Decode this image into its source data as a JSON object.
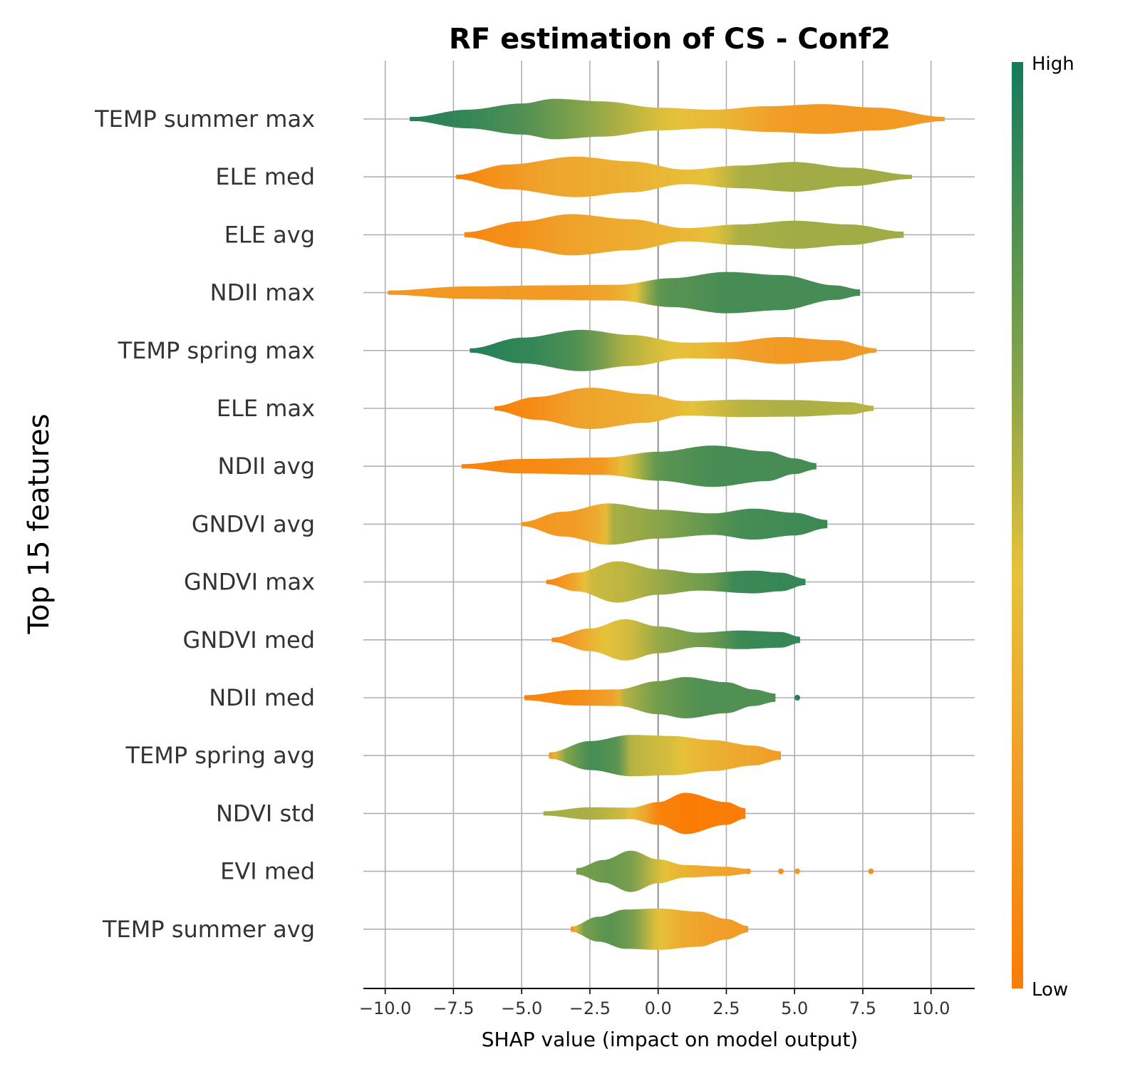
{
  "chart_data": {
    "type": "violin",
    "title": "RF estimation of CS - Conf2",
    "xlabel": "SHAP value (impact on model output)",
    "ylabel": "Top 15 features",
    "xlim": [
      -10.8,
      11.6
    ],
    "xticks": [
      -10.0,
      -7.5,
      -5.0,
      -2.5,
      0.0,
      2.5,
      5.0,
      7.5,
      10.0
    ],
    "xtick_labels": [
      "−10.0",
      "−7.5",
      "−5.0",
      "−2.5",
      "0.0",
      "2.5",
      "5.0",
      "7.5",
      "10.0"
    ],
    "grid": true,
    "colorbar": {
      "high_label": "High",
      "low_label": "Low",
      "high_color": "#137a5b",
      "mid_high_color": "#8aa54a",
      "mid_color": "#e6c23a",
      "mid_low_color": "#f0a02a",
      "low_color": "#fa7c05"
    },
    "features": [
      {
        "name": "TEMP summer max",
        "min": -9.1,
        "max": 10.5,
        "density": [
          [
            -9.1,
            0.08
          ],
          [
            -7.0,
            0.45
          ],
          [
            -5.0,
            0.75
          ],
          [
            -3.8,
            0.98
          ],
          [
            -2.0,
            0.85
          ],
          [
            0.0,
            0.55
          ],
          [
            2.0,
            0.45
          ],
          [
            4.0,
            0.62
          ],
          [
            6.0,
            0.72
          ],
          [
            8.0,
            0.55
          ],
          [
            10.5,
            0.1
          ]
        ],
        "color_values": [
          [
            -9.1,
            0.95
          ],
          [
            -7.0,
            0.9
          ],
          [
            -5.0,
            0.82
          ],
          [
            -3.0,
            0.68
          ],
          [
            -1.5,
            0.58
          ],
          [
            0.5,
            0.45
          ],
          [
            2.5,
            0.38
          ],
          [
            4.5,
            0.22
          ],
          [
            7.0,
            0.2
          ],
          [
            10.5,
            0.22
          ]
        ]
      },
      {
        "name": "ELE med",
        "min": -7.4,
        "max": 9.3,
        "density": [
          [
            -7.4,
            0.1
          ],
          [
            -5.5,
            0.6
          ],
          [
            -3.0,
            0.98
          ],
          [
            -1.0,
            0.75
          ],
          [
            1.0,
            0.35
          ],
          [
            3.0,
            0.55
          ],
          [
            5.0,
            0.72
          ],
          [
            7.0,
            0.45
          ],
          [
            9.3,
            0.1
          ]
        ],
        "color_values": [
          [
            -7.4,
            0.02
          ],
          [
            -6.0,
            0.15
          ],
          [
            -4.0,
            0.28
          ],
          [
            -2.0,
            0.32
          ],
          [
            0.0,
            0.38
          ],
          [
            1.8,
            0.45
          ],
          [
            3.0,
            0.58
          ],
          [
            5.0,
            0.6
          ],
          [
            7.0,
            0.6
          ],
          [
            9.3,
            0.6
          ]
        ]
      },
      {
        "name": "ELE avg",
        "min": -7.1,
        "max": 9.0,
        "density": [
          [
            -7.1,
            0.12
          ],
          [
            -5.0,
            0.65
          ],
          [
            -3.2,
            1.0
          ],
          [
            -1.0,
            0.75
          ],
          [
            1.0,
            0.32
          ],
          [
            3.0,
            0.5
          ],
          [
            5.0,
            0.68
          ],
          [
            7.0,
            0.5
          ],
          [
            9.0,
            0.15
          ]
        ],
        "color_values": [
          [
            -7.1,
            0.08
          ],
          [
            -5.0,
            0.15
          ],
          [
            -3.5,
            0.25
          ],
          [
            -1.0,
            0.32
          ],
          [
            1.0,
            0.38
          ],
          [
            2.0,
            0.45
          ],
          [
            3.0,
            0.58
          ],
          [
            5.0,
            0.6
          ],
          [
            9.0,
            0.6
          ]
        ]
      },
      {
        "name": "NDII max",
        "min": -9.9,
        "max": 7.4,
        "density": [
          [
            -9.9,
            0.1
          ],
          [
            -7.0,
            0.3
          ],
          [
            -4.0,
            0.35
          ],
          [
            -1.5,
            0.38
          ],
          [
            0.5,
            0.7
          ],
          [
            2.5,
            1.0
          ],
          [
            4.5,
            0.85
          ],
          [
            6.5,
            0.35
          ],
          [
            7.4,
            0.15
          ]
        ],
        "color_values": [
          [
            -9.9,
            0.18
          ],
          [
            -6.0,
            0.2
          ],
          [
            -3.0,
            0.22
          ],
          [
            -1.5,
            0.3
          ],
          [
            -0.8,
            0.45
          ],
          [
            0.0,
            0.78
          ],
          [
            2.5,
            0.85
          ],
          [
            7.4,
            0.85
          ]
        ]
      },
      {
        "name": "TEMP spring max",
        "min": -6.9,
        "max": 8.0,
        "density": [
          [
            -6.9,
            0.1
          ],
          [
            -5.0,
            0.62
          ],
          [
            -2.8,
            1.0
          ],
          [
            -1.0,
            0.75
          ],
          [
            1.0,
            0.38
          ],
          [
            2.5,
            0.4
          ],
          [
            4.5,
            0.65
          ],
          [
            6.5,
            0.5
          ],
          [
            8.0,
            0.1
          ]
        ],
        "color_values": [
          [
            -6.9,
            0.95
          ],
          [
            -4.5,
            0.9
          ],
          [
            -3.0,
            0.82
          ],
          [
            -2.0,
            0.7
          ],
          [
            -1.5,
            0.6
          ],
          [
            0.0,
            0.48
          ],
          [
            1.8,
            0.4
          ],
          [
            3.0,
            0.25
          ],
          [
            5.0,
            0.2
          ],
          [
            8.0,
            0.22
          ]
        ]
      },
      {
        "name": "ELE max",
        "min": -6.0,
        "max": 7.9,
        "density": [
          [
            -6.0,
            0.1
          ],
          [
            -4.5,
            0.55
          ],
          [
            -2.5,
            1.0
          ],
          [
            -0.5,
            0.7
          ],
          [
            1.0,
            0.35
          ],
          [
            3.0,
            0.42
          ],
          [
            5.0,
            0.4
          ],
          [
            7.0,
            0.3
          ],
          [
            7.9,
            0.12
          ]
        ],
        "color_values": [
          [
            -6.0,
            0.02
          ],
          [
            -4.5,
            0.12
          ],
          [
            -3.0,
            0.26
          ],
          [
            -1.0,
            0.32
          ],
          [
            0.5,
            0.38
          ],
          [
            1.2,
            0.45
          ],
          [
            3.0,
            0.55
          ],
          [
            5.0,
            0.58
          ],
          [
            7.9,
            0.55
          ]
        ]
      },
      {
        "name": "NDII avg",
        "min": -7.2,
        "max": 5.8,
        "density": [
          [
            -7.2,
            0.1
          ],
          [
            -5.0,
            0.35
          ],
          [
            -2.0,
            0.42
          ],
          [
            0.0,
            0.7
          ],
          [
            2.0,
            1.0
          ],
          [
            4.0,
            0.72
          ],
          [
            5.0,
            0.38
          ],
          [
            5.8,
            0.15
          ]
        ],
        "color_values": [
          [
            -7.2,
            0.05
          ],
          [
            -4.0,
            0.1
          ],
          [
            -2.0,
            0.2
          ],
          [
            -1.5,
            0.38
          ],
          [
            -0.8,
            0.55
          ],
          [
            0.0,
            0.78
          ],
          [
            2.0,
            0.85
          ],
          [
            5.8,
            0.85
          ]
        ]
      },
      {
        "name": "GNDVI avg",
        "min": -5.0,
        "max": 6.2,
        "density": [
          [
            -5.0,
            0.1
          ],
          [
            -3.5,
            0.6
          ],
          [
            -1.8,
            1.0
          ],
          [
            0.0,
            0.7
          ],
          [
            2.0,
            0.52
          ],
          [
            3.5,
            0.75
          ],
          [
            5.0,
            0.55
          ],
          [
            6.2,
            0.2
          ]
        ],
        "color_values": [
          [
            -5.0,
            0.18
          ],
          [
            -3.0,
            0.22
          ],
          [
            -2.0,
            0.35
          ],
          [
            -1.7,
            0.58
          ],
          [
            0.0,
            0.65
          ],
          [
            1.5,
            0.75
          ],
          [
            3.0,
            0.85
          ],
          [
            6.2,
            0.88
          ]
        ]
      },
      {
        "name": "GNDVI max",
        "min": -4.1,
        "max": 5.4,
        "density": [
          [
            -4.1,
            0.1
          ],
          [
            -3.0,
            0.45
          ],
          [
            -1.5,
            1.0
          ],
          [
            0.0,
            0.62
          ],
          [
            1.5,
            0.42
          ],
          [
            3.5,
            0.55
          ],
          [
            4.5,
            0.45
          ],
          [
            5.4,
            0.15
          ]
        ],
        "color_values": [
          [
            -4.1,
            0.05
          ],
          [
            -3.2,
            0.25
          ],
          [
            -2.5,
            0.5
          ],
          [
            -1.0,
            0.55
          ],
          [
            0.5,
            0.65
          ],
          [
            2.0,
            0.75
          ],
          [
            2.8,
            0.88
          ],
          [
            5.4,
            0.9
          ]
        ]
      },
      {
        "name": "GNDVI med",
        "min": -3.9,
        "max": 5.2,
        "density": [
          [
            -3.9,
            0.1
          ],
          [
            -2.5,
            0.55
          ],
          [
            -1.2,
            1.0
          ],
          [
            0.0,
            0.65
          ],
          [
            1.5,
            0.35
          ],
          [
            3.0,
            0.45
          ],
          [
            4.5,
            0.38
          ],
          [
            5.2,
            0.15
          ]
        ],
        "color_values": [
          [
            -3.9,
            0.1
          ],
          [
            -3.0,
            0.25
          ],
          [
            -2.0,
            0.45
          ],
          [
            -1.0,
            0.5
          ],
          [
            0.0,
            0.62
          ],
          [
            2.0,
            0.75
          ],
          [
            3.0,
            0.88
          ],
          [
            5.2,
            0.9
          ]
        ]
      },
      {
        "name": "NDII med",
        "min": -4.9,
        "max": 4.3,
        "density": [
          [
            -4.9,
            0.12
          ],
          [
            -3.0,
            0.38
          ],
          [
            -1.5,
            0.4
          ],
          [
            0.0,
            0.8
          ],
          [
            1.0,
            1.0
          ],
          [
            2.5,
            0.75
          ],
          [
            3.5,
            0.4
          ],
          [
            4.3,
            0.2
          ]
        ],
        "color_values": [
          [
            -4.9,
            0.05
          ],
          [
            -3.0,
            0.12
          ],
          [
            -1.5,
            0.28
          ],
          [
            -1.3,
            0.55
          ],
          [
            0.0,
            0.72
          ],
          [
            1.5,
            0.82
          ],
          [
            4.3,
            0.82
          ]
        ],
        "outliers": [
          {
            "x": 5.1,
            "c": 0.95
          }
        ]
      },
      {
        "name": "TEMP spring avg",
        "min": -4.0,
        "max": 4.5,
        "density": [
          [
            -4.0,
            0.15
          ],
          [
            -2.5,
            0.7
          ],
          [
            -1.0,
            1.0
          ],
          [
            0.5,
            0.95
          ],
          [
            2.0,
            0.75
          ],
          [
            3.5,
            0.48
          ],
          [
            4.5,
            0.2
          ]
        ],
        "color_values": [
          [
            -4.0,
            0.15
          ],
          [
            -3.5,
            0.65
          ],
          [
            -2.5,
            0.85
          ],
          [
            -1.5,
            0.8
          ],
          [
            -1.0,
            0.55
          ],
          [
            0.5,
            0.48
          ],
          [
            1.5,
            0.38
          ],
          [
            3.0,
            0.3
          ],
          [
            4.5,
            0.22
          ]
        ]
      },
      {
        "name": "NDVI std",
        "min": -4.2,
        "max": 3.2,
        "density": [
          [
            -4.2,
            0.1
          ],
          [
            -2.5,
            0.3
          ],
          [
            -1.0,
            0.28
          ],
          [
            0.0,
            0.55
          ],
          [
            1.0,
            1.0
          ],
          [
            2.5,
            0.55
          ],
          [
            3.2,
            0.25
          ]
        ],
        "color_values": [
          [
            -4.2,
            0.6
          ],
          [
            -2.5,
            0.58
          ],
          [
            -1.2,
            0.5
          ],
          [
            -0.5,
            0.3
          ],
          [
            0.0,
            0.05
          ],
          [
            1.0,
            0.0
          ],
          [
            3.2,
            0.02
          ]
        ]
      },
      {
        "name": "EVI med",
        "min": -3.0,
        "max": 3.3,
        "density": [
          [
            -3.0,
            0.15
          ],
          [
            -2.0,
            0.55
          ],
          [
            -1.0,
            1.0
          ],
          [
            0.0,
            0.58
          ],
          [
            1.0,
            0.3
          ],
          [
            2.5,
            0.22
          ],
          [
            3.3,
            0.12
          ]
        ],
        "color_values": [
          [
            -3.0,
            0.7
          ],
          [
            -1.8,
            0.75
          ],
          [
            -1.0,
            0.7
          ],
          [
            -0.3,
            0.55
          ],
          [
            0.5,
            0.4
          ],
          [
            1.5,
            0.32
          ],
          [
            3.3,
            0.25
          ]
        ],
        "outliers": [
          {
            "x": 3.3,
            "c": 0.2
          },
          {
            "x": 4.5,
            "c": 0.15
          },
          {
            "x": 5.1,
            "c": 0.2
          },
          {
            "x": 7.8,
            "c": 0.15
          }
        ]
      },
      {
        "name": "TEMP summer avg",
        "min": -3.2,
        "max": 3.3,
        "density": [
          [
            -3.2,
            0.12
          ],
          [
            -2.2,
            0.6
          ],
          [
            -1.2,
            0.95
          ],
          [
            0.0,
            1.0
          ],
          [
            1.5,
            0.85
          ],
          [
            2.5,
            0.5
          ],
          [
            3.3,
            0.15
          ]
        ],
        "color_values": [
          [
            -3.2,
            0.1
          ],
          [
            -2.8,
            0.7
          ],
          [
            -1.8,
            0.8
          ],
          [
            -1.0,
            0.72
          ],
          [
            -0.2,
            0.5
          ],
          [
            0.8,
            0.32
          ],
          [
            2.0,
            0.25
          ],
          [
            3.3,
            0.22
          ]
        ]
      }
    ]
  }
}
